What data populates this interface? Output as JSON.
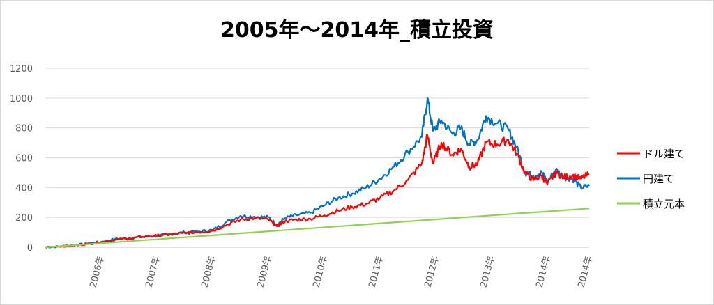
{
  "chart_data": {
    "type": "line",
    "title": "2005年～2014年_積立投資",
    "xlabel": "",
    "ylabel": "",
    "ylim": [
      0,
      1200
    ],
    "xlim": [
      2005.0,
      2014.75
    ],
    "grid": "horizontal",
    "legend_position": "right",
    "y_ticks": [
      "0",
      "200",
      "400",
      "600",
      "800",
      "1000",
      "1200"
    ],
    "x_tick_labels": [
      "2006年",
      "2007年",
      "2008年",
      "2009年",
      "2010年",
      "2011年",
      "2012年",
      "2013年",
      "2014年",
      "2014年"
    ],
    "x_tick_positions": [
      2006.0,
      2007.0,
      2008.0,
      2009.0,
      2010.0,
      2011.0,
      2012.0,
      2013.0,
      2014.0,
      2014.75
    ],
    "series": [
      {
        "name": "ドル建て",
        "color": "#ff0000",
        "points": [
          [
            2005.0,
            0
          ],
          [
            2005.25,
            6
          ],
          [
            2005.5,
            12
          ],
          [
            2005.75,
            22
          ],
          [
            2006.0,
            34
          ],
          [
            2006.25,
            50
          ],
          [
            2006.5,
            58
          ],
          [
            2006.75,
            70
          ],
          [
            2007.0,
            78
          ],
          [
            2007.25,
            86
          ],
          [
            2007.5,
            95
          ],
          [
            2007.75,
            102
          ],
          [
            2008.0,
            110
          ],
          [
            2008.25,
            150
          ],
          [
            2008.5,
            185
          ],
          [
            2008.75,
            195
          ],
          [
            2009.0,
            185
          ],
          [
            2009.15,
            140
          ],
          [
            2009.3,
            175
          ],
          [
            2009.5,
            185
          ],
          [
            2009.75,
            190
          ],
          [
            2010.0,
            215
          ],
          [
            2010.25,
            245
          ],
          [
            2010.5,
            270
          ],
          [
            2010.75,
            290
          ],
          [
            2011.0,
            330
          ],
          [
            2011.25,
            380
          ],
          [
            2011.5,
            450
          ],
          [
            2011.75,
            560
          ],
          [
            2011.85,
            750
          ],
          [
            2011.95,
            560
          ],
          [
            2012.1,
            700
          ],
          [
            2012.3,
            620
          ],
          [
            2012.45,
            660
          ],
          [
            2012.6,
            540
          ],
          [
            2012.75,
            560
          ],
          [
            2012.9,
            700
          ],
          [
            2013.1,
            690
          ],
          [
            2013.3,
            720
          ],
          [
            2013.45,
            630
          ],
          [
            2013.6,
            500
          ],
          [
            2013.75,
            450
          ],
          [
            2013.9,
            480
          ],
          [
            2014.0,
            420
          ],
          [
            2014.15,
            500
          ],
          [
            2014.3,
            470
          ],
          [
            2014.45,
            480
          ],
          [
            2014.6,
            460
          ],
          [
            2014.75,
            490
          ]
        ]
      },
      {
        "name": "円建て",
        "color": "#0070c0",
        "points": [
          [
            2005.0,
            0
          ],
          [
            2005.25,
            6
          ],
          [
            2005.5,
            13
          ],
          [
            2005.75,
            24
          ],
          [
            2006.0,
            36
          ],
          [
            2006.25,
            55
          ],
          [
            2006.5,
            60
          ],
          [
            2006.75,
            70
          ],
          [
            2007.0,
            75
          ],
          [
            2007.25,
            88
          ],
          [
            2007.5,
            100
          ],
          [
            2007.75,
            105
          ],
          [
            2008.0,
            115
          ],
          [
            2008.25,
            170
          ],
          [
            2008.5,
            210
          ],
          [
            2008.75,
            205
          ],
          [
            2009.0,
            200
          ],
          [
            2009.15,
            150
          ],
          [
            2009.3,
            195
          ],
          [
            2009.5,
            215
          ],
          [
            2009.75,
            230
          ],
          [
            2010.0,
            280
          ],
          [
            2010.25,
            330
          ],
          [
            2010.5,
            360
          ],
          [
            2010.75,
            400
          ],
          [
            2011.0,
            460
          ],
          [
            2011.25,
            540
          ],
          [
            2011.5,
            640
          ],
          [
            2011.75,
            740
          ],
          [
            2011.85,
            1000
          ],
          [
            2011.95,
            780
          ],
          [
            2012.1,
            850
          ],
          [
            2012.3,
            760
          ],
          [
            2012.45,
            800
          ],
          [
            2012.6,
            690
          ],
          [
            2012.75,
            720
          ],
          [
            2012.9,
            880
          ],
          [
            2013.1,
            830
          ],
          [
            2013.3,
            790
          ],
          [
            2013.45,
            670
          ],
          [
            2013.6,
            500
          ],
          [
            2013.75,
            480
          ],
          [
            2013.9,
            500
          ],
          [
            2014.0,
            440
          ],
          [
            2014.15,
            520
          ],
          [
            2014.3,
            470
          ],
          [
            2014.45,
            460
          ],
          [
            2014.6,
            400
          ],
          [
            2014.75,
            410
          ]
        ]
      },
      {
        "name": "積立元本",
        "color": "#92d050",
        "points": [
          [
            2005.0,
            0
          ],
          [
            2014.75,
            260
          ]
        ]
      }
    ]
  }
}
